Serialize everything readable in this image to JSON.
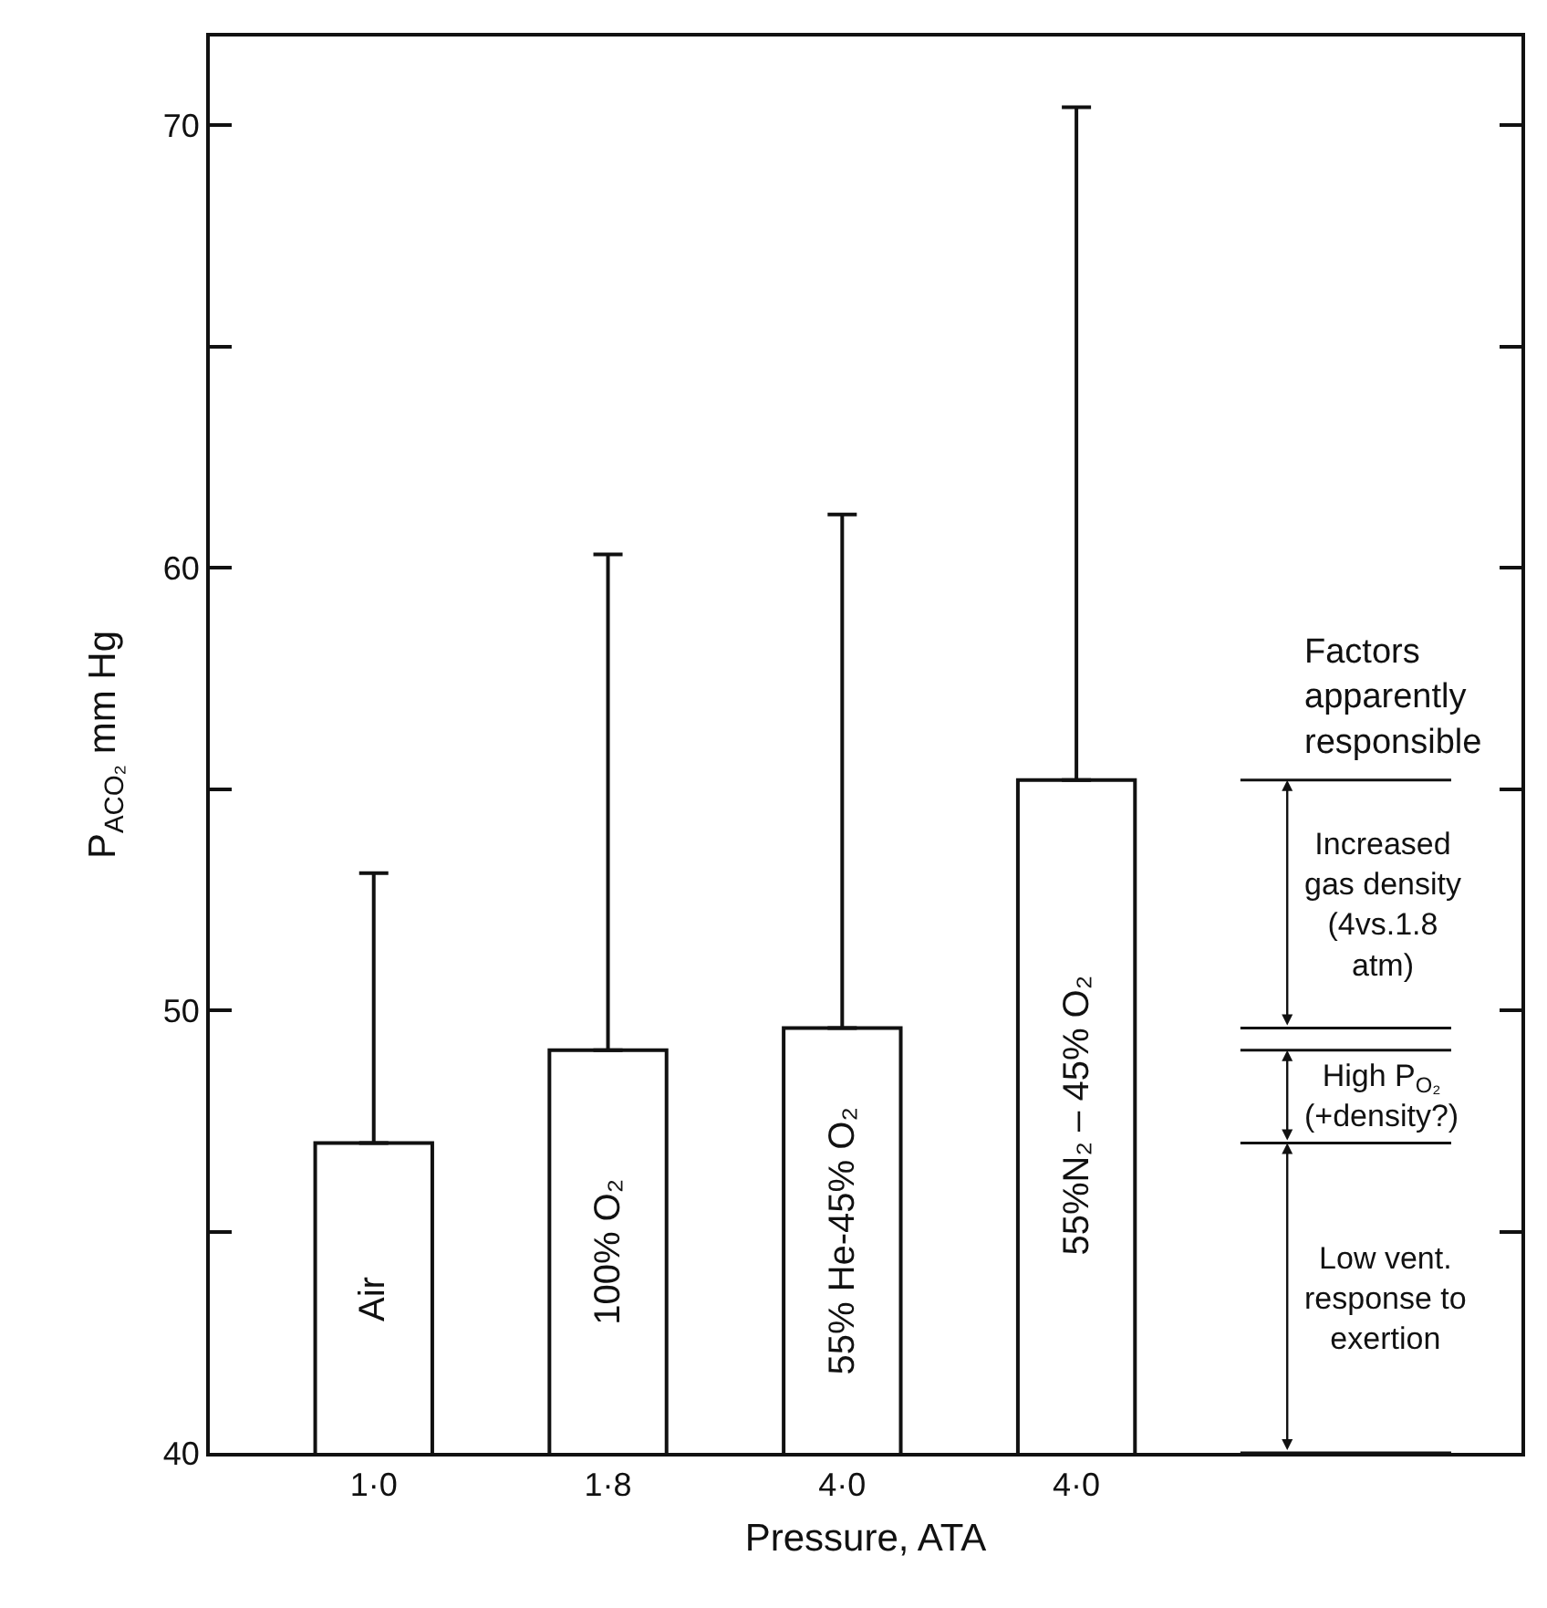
{
  "chart_data": {
    "type": "bar",
    "xlabel": "Pressure, ATA",
    "ylabel": "P$_{ACO₂}$ mm Hg",
    "categories": [
      "1·0",
      "1·8",
      "4·0",
      "4·0"
    ],
    "values": [
      47.0,
      49.1,
      49.6,
      55.2
    ],
    "errors": [
      [
        47.0,
        53.1
      ],
      [
        49.1,
        60.3
      ],
      [
        49.6,
        61.2
      ],
      [
        55.2,
        70.4
      ]
    ],
    "color": "#ffffff",
    "ylim": [
      40,
      72
    ],
    "yticks": [
      40,
      50,
      60,
      70
    ],
    "annotations": [
      "Air",
      "100% O₂",
      "55% He-45% O₂",
      "55%N₂ – 45% O₂",
      "Factors apparently responsible",
      "Increased gas density (4vs.1.8 atm)",
      "High P$_{O₂}$ (+density?)",
      "Low vent. response to exertion"
    ],
    "grid": false
  }
}
